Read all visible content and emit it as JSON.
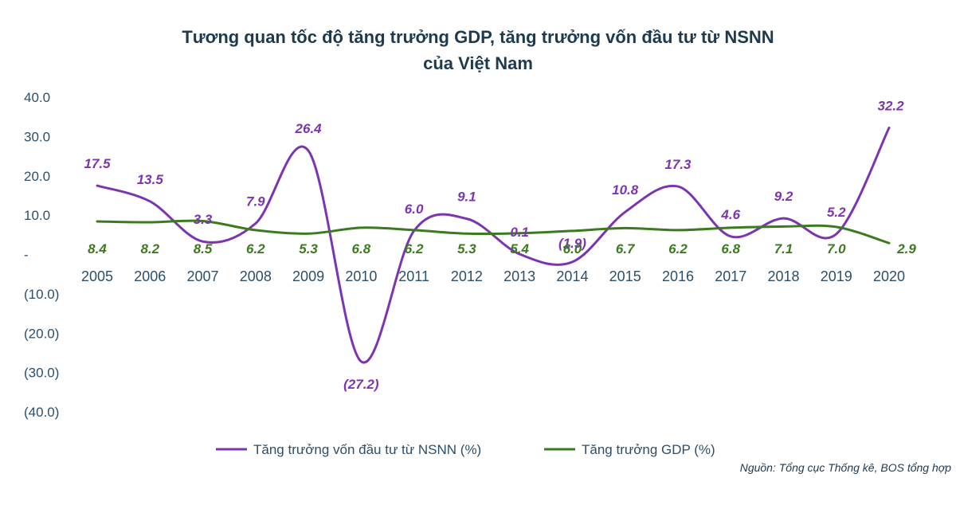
{
  "chart_data": {
    "type": "line",
    "title_line1": "Tương quan tốc độ tăng trưởng GDP, tăng trưởng vốn đầu tư từ NSNN",
    "title_line2": "của Việt Nam",
    "categories": [
      "2005",
      "2006",
      "2007",
      "2008",
      "2009",
      "2010",
      "2011",
      "2012",
      "2013",
      "2014",
      "2015",
      "2016",
      "2017",
      "2018",
      "2019",
      "2020"
    ],
    "ylim": [
      -40,
      40
    ],
    "yticks": [
      {
        "value": 40,
        "label": "40.0"
      },
      {
        "value": 30,
        "label": "30.0"
      },
      {
        "value": 20,
        "label": "20.0"
      },
      {
        "value": 10,
        "label": "10.0"
      },
      {
        "value": 0,
        "label": "-"
      },
      {
        "value": -10,
        "label": "(10.0)"
      },
      {
        "value": -20,
        "label": "(20.0)"
      },
      {
        "value": -30,
        "label": "(30.0)"
      },
      {
        "value": -40,
        "label": "(40.0)"
      }
    ],
    "series": [
      {
        "name": "Tăng trưởng vốn đầu tư từ NSNN (%)",
        "color": "#7b35b0",
        "values": [
          17.5,
          13.5,
          3.3,
          7.9,
          26.4,
          -27.2,
          6.0,
          9.1,
          0.1,
          -1.9,
          10.8,
          17.3,
          4.6,
          9.2,
          5.2,
          32.2
        ],
        "labels": [
          "17.5",
          "13.5",
          "3.3",
          "7.9",
          "26.4",
          "(27.2)",
          "6.0",
          "9.1",
          "0.1",
          "(1.9)",
          "10.8",
          "17.3",
          "4.6",
          "9.2",
          "5.2",
          "32.2"
        ]
      },
      {
        "name": "Tăng trưởng GDP (%)",
        "color": "#3c7a20",
        "values": [
          8.4,
          8.2,
          8.5,
          6.2,
          5.3,
          6.8,
          6.2,
          5.3,
          5.4,
          6.0,
          6.7,
          6.2,
          6.8,
          7.1,
          7.0,
          2.9
        ],
        "labels": [
          "8.4",
          "8.2",
          "8.5",
          "6.2",
          "5.3",
          "6.8",
          "6.2",
          "5.3",
          "5.4",
          "6.0",
          "6.7",
          "6.2",
          "6.8",
          "7.1",
          "7.0",
          "2.9"
        ]
      }
    ],
    "legend_position": "bottom",
    "grid": false
  },
  "source_note": "Nguồn: Tổng cục Thống kê, BOS tổng hợp"
}
